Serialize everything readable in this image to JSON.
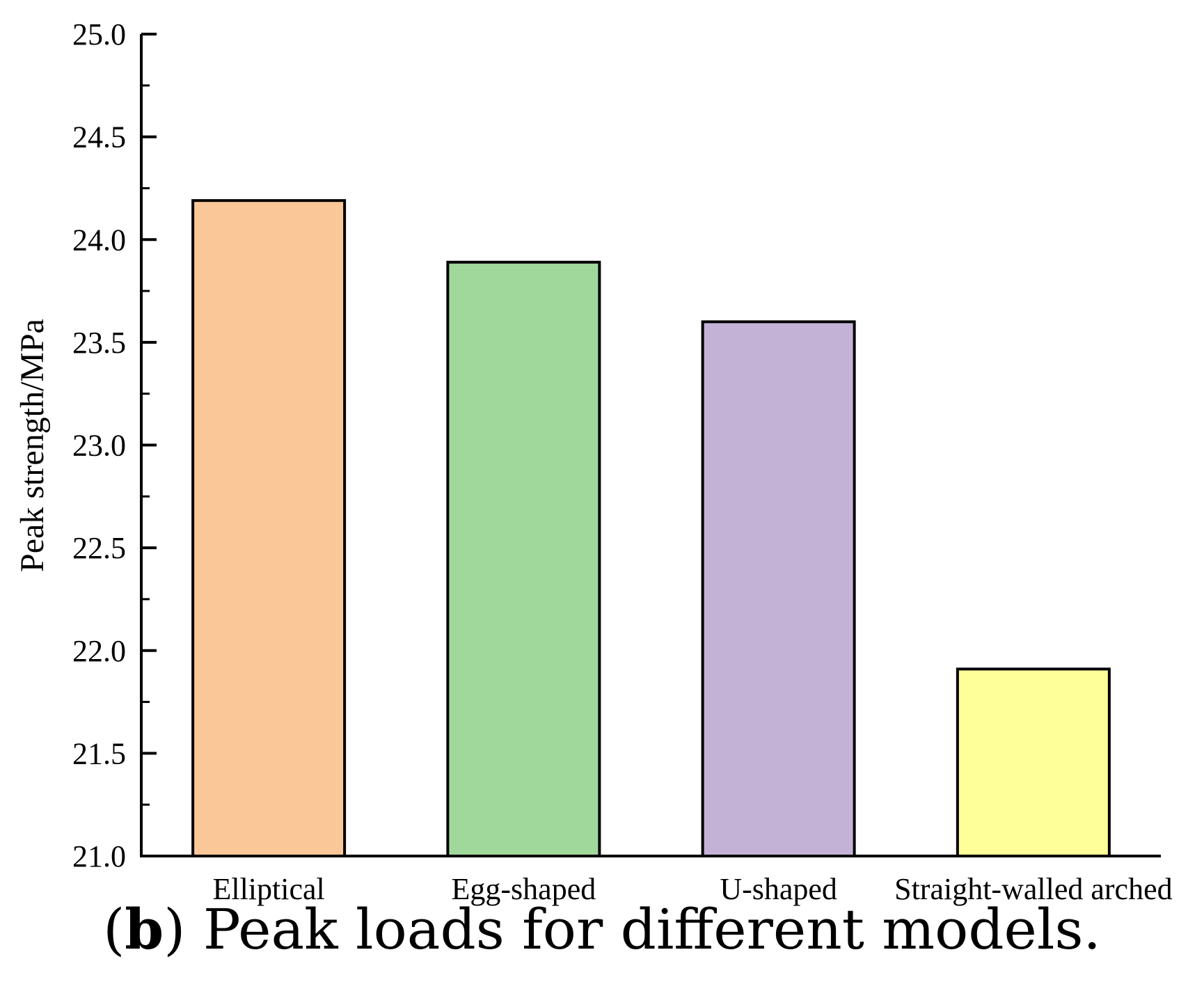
{
  "chart_data": {
    "type": "bar",
    "title": "",
    "xlabel": "",
    "ylabel": "Peak strength/MPa",
    "categories": [
      "Elliptical",
      "Egg-shaped",
      "U-shaped",
      "Straight-walled arched"
    ],
    "values": [
      24.19,
      23.89,
      23.6,
      21.91
    ],
    "colors": [
      "#FAC898",
      "#A0D89C",
      "#C3B2D6",
      "#FFFF99"
    ],
    "ylim": [
      21.0,
      25.0
    ],
    "yticks": [
      "21.0",
      "21.5",
      "22.0",
      "22.5",
      "23.0",
      "23.5",
      "24.0",
      "24.5",
      "25.0"
    ],
    "grid": false
  },
  "caption": {
    "open_paren": "(",
    "letter": "b",
    "text": ") Peak loads for different models."
  }
}
